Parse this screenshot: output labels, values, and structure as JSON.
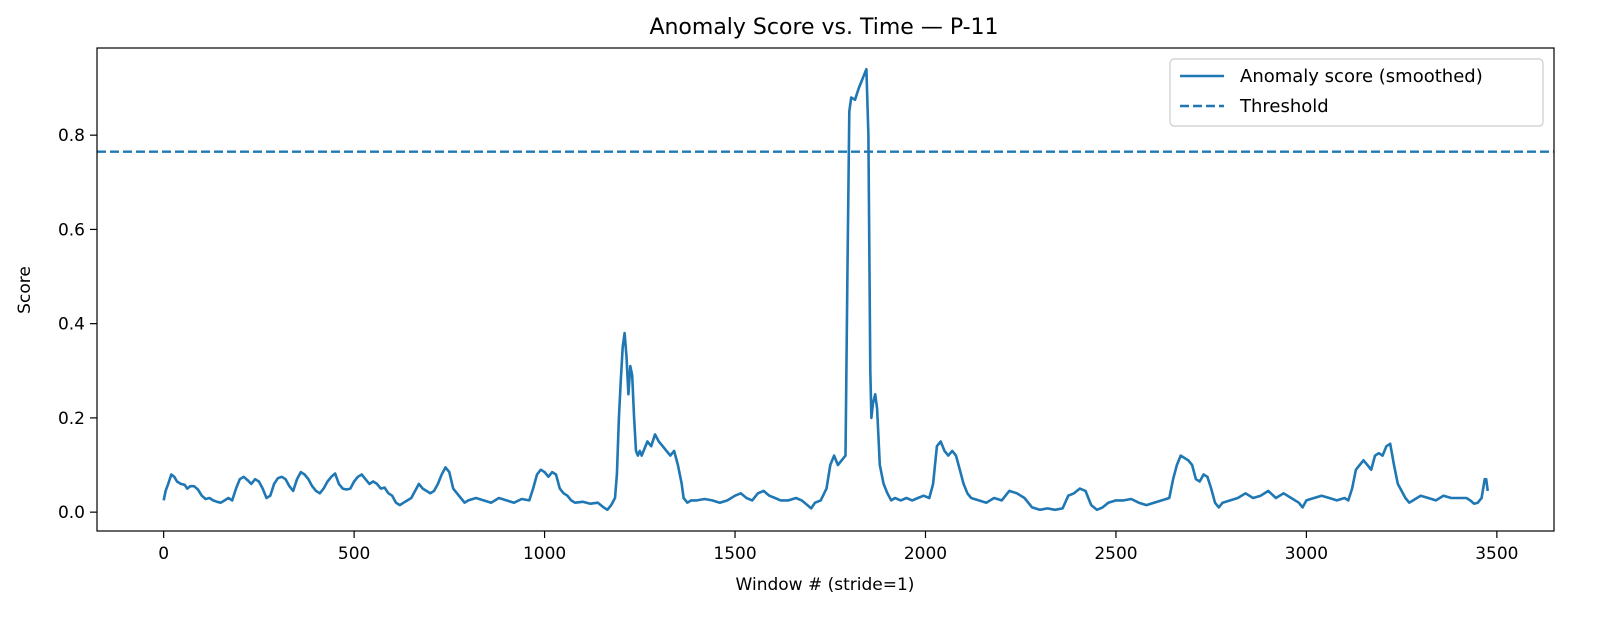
{
  "chart_data": {
    "type": "line",
    "title": "Anomaly Score vs. Time — P-11",
    "xlabel": "Window # (stride=1)",
    "ylabel": "Score",
    "xlim": [
      -175,
      3650
    ],
    "ylim": [
      -0.04,
      0.985
    ],
    "xticks": [
      0,
      500,
      1000,
      1500,
      2000,
      2500,
      3000,
      3500
    ],
    "yticks": [
      0.0,
      0.2,
      0.4,
      0.6,
      0.8
    ],
    "grid": false,
    "legend_position": "top-right",
    "threshold": 0.765,
    "colors": {
      "series": "#1f77b4",
      "threshold": "#1f77b4"
    },
    "series": [
      {
        "name": "Anomaly score (smoothed)",
        "style": "solid",
        "points": [
          [
            0,
            0.025
          ],
          [
            5,
            0.045
          ],
          [
            12,
            0.06
          ],
          [
            20,
            0.08
          ],
          [
            28,
            0.075
          ],
          [
            35,
            0.065
          ],
          [
            45,
            0.06
          ],
          [
            55,
            0.058
          ],
          [
            62,
            0.05
          ],
          [
            70,
            0.055
          ],
          [
            80,
            0.055
          ],
          [
            90,
            0.048
          ],
          [
            100,
            0.035
          ],
          [
            110,
            0.028
          ],
          [
            120,
            0.03
          ],
          [
            130,
            0.025
          ],
          [
            140,
            0.022
          ],
          [
            150,
            0.02
          ],
          [
            160,
            0.025
          ],
          [
            170,
            0.03
          ],
          [
            180,
            0.025
          ],
          [
            190,
            0.05
          ],
          [
            200,
            0.07
          ],
          [
            210,
            0.075
          ],
          [
            220,
            0.068
          ],
          [
            230,
            0.06
          ],
          [
            240,
            0.07
          ],
          [
            250,
            0.065
          ],
          [
            260,
            0.05
          ],
          [
            270,
            0.03
          ],
          [
            280,
            0.035
          ],
          [
            290,
            0.06
          ],
          [
            300,
            0.072
          ],
          [
            310,
            0.075
          ],
          [
            320,
            0.07
          ],
          [
            330,
            0.055
          ],
          [
            340,
            0.045
          ],
          [
            350,
            0.07
          ],
          [
            360,
            0.085
          ],
          [
            370,
            0.08
          ],
          [
            380,
            0.07
          ],
          [
            390,
            0.055
          ],
          [
            400,
            0.045
          ],
          [
            410,
            0.04
          ],
          [
            420,
            0.05
          ],
          [
            430,
            0.065
          ],
          [
            440,
            0.075
          ],
          [
            450,
            0.082
          ],
          [
            460,
            0.06
          ],
          [
            470,
            0.05
          ],
          [
            480,
            0.048
          ],
          [
            490,
            0.05
          ],
          [
            500,
            0.065
          ],
          [
            510,
            0.075
          ],
          [
            520,
            0.08
          ],
          [
            530,
            0.07
          ],
          [
            540,
            0.06
          ],
          [
            550,
            0.065
          ],
          [
            560,
            0.06
          ],
          [
            570,
            0.05
          ],
          [
            580,
            0.052
          ],
          [
            590,
            0.04
          ],
          [
            600,
            0.035
          ],
          [
            610,
            0.02
          ],
          [
            620,
            0.015
          ],
          [
            630,
            0.02
          ],
          [
            640,
            0.025
          ],
          [
            650,
            0.03
          ],
          [
            660,
            0.045
          ],
          [
            670,
            0.06
          ],
          [
            680,
            0.05
          ],
          [
            690,
            0.045
          ],
          [
            700,
            0.04
          ],
          [
            710,
            0.045
          ],
          [
            720,
            0.06
          ],
          [
            730,
            0.08
          ],
          [
            740,
            0.095
          ],
          [
            750,
            0.085
          ],
          [
            760,
            0.05
          ],
          [
            770,
            0.04
          ],
          [
            780,
            0.03
          ],
          [
            790,
            0.02
          ],
          [
            800,
            0.025
          ],
          [
            820,
            0.03
          ],
          [
            840,
            0.025
          ],
          [
            860,
            0.02
          ],
          [
            880,
            0.03
          ],
          [
            900,
            0.025
          ],
          [
            920,
            0.02
          ],
          [
            940,
            0.028
          ],
          [
            960,
            0.025
          ],
          [
            970,
            0.05
          ],
          [
            980,
            0.08
          ],
          [
            990,
            0.09
          ],
          [
            1000,
            0.085
          ],
          [
            1010,
            0.075
          ],
          [
            1020,
            0.085
          ],
          [
            1030,
            0.08
          ],
          [
            1040,
            0.05
          ],
          [
            1050,
            0.04
          ],
          [
            1060,
            0.035
          ],
          [
            1070,
            0.025
          ],
          [
            1080,
            0.02
          ],
          [
            1100,
            0.022
          ],
          [
            1120,
            0.018
          ],
          [
            1140,
            0.02
          ],
          [
            1155,
            0.01
          ],
          [
            1165,
            0.005
          ],
          [
            1175,
            0.015
          ],
          [
            1185,
            0.03
          ],
          [
            1190,
            0.08
          ],
          [
            1195,
            0.2
          ],
          [
            1200,
            0.28
          ],
          [
            1205,
            0.35
          ],
          [
            1210,
            0.38
          ],
          [
            1215,
            0.33
          ],
          [
            1220,
            0.25
          ],
          [
            1225,
            0.31
          ],
          [
            1230,
            0.29
          ],
          [
            1235,
            0.2
          ],
          [
            1240,
            0.13
          ],
          [
            1245,
            0.12
          ],
          [
            1250,
            0.13
          ],
          [
            1255,
            0.12
          ],
          [
            1260,
            0.13
          ],
          [
            1270,
            0.15
          ],
          [
            1280,
            0.14
          ],
          [
            1290,
            0.165
          ],
          [
            1300,
            0.15
          ],
          [
            1310,
            0.14
          ],
          [
            1320,
            0.13
          ],
          [
            1330,
            0.12
          ],
          [
            1340,
            0.13
          ],
          [
            1350,
            0.1
          ],
          [
            1360,
            0.06
          ],
          [
            1365,
            0.03
          ],
          [
            1375,
            0.02
          ],
          [
            1385,
            0.025
          ],
          [
            1400,
            0.025
          ],
          [
            1420,
            0.028
          ],
          [
            1440,
            0.025
          ],
          [
            1460,
            0.02
          ],
          [
            1480,
            0.025
          ],
          [
            1500,
            0.035
          ],
          [
            1515,
            0.04
          ],
          [
            1530,
            0.03
          ],
          [
            1545,
            0.025
          ],
          [
            1560,
            0.04
          ],
          [
            1575,
            0.045
          ],
          [
            1590,
            0.035
          ],
          [
            1605,
            0.03
          ],
          [
            1620,
            0.025
          ],
          [
            1640,
            0.025
          ],
          [
            1660,
            0.03
          ],
          [
            1675,
            0.025
          ],
          [
            1690,
            0.015
          ],
          [
            1700,
            0.008
          ],
          [
            1710,
            0.02
          ],
          [
            1725,
            0.025
          ],
          [
            1740,
            0.05
          ],
          [
            1750,
            0.1
          ],
          [
            1760,
            0.12
          ],
          [
            1770,
            0.1
          ],
          [
            1780,
            0.11
          ],
          [
            1790,
            0.12
          ],
          [
            1795,
            0.5
          ],
          [
            1800,
            0.85
          ],
          [
            1805,
            0.88
          ],
          [
            1815,
            0.875
          ],
          [
            1825,
            0.9
          ],
          [
            1835,
            0.92
          ],
          [
            1845,
            0.94
          ],
          [
            1850,
            0.8
          ],
          [
            1855,
            0.3
          ],
          [
            1858,
            0.2
          ],
          [
            1862,
            0.23
          ],
          [
            1868,
            0.25
          ],
          [
            1873,
            0.22
          ],
          [
            1880,
            0.1
          ],
          [
            1890,
            0.06
          ],
          [
            1900,
            0.04
          ],
          [
            1910,
            0.025
          ],
          [
            1920,
            0.03
          ],
          [
            1935,
            0.025
          ],
          [
            1950,
            0.03
          ],
          [
            1965,
            0.025
          ],
          [
            1980,
            0.03
          ],
          [
            1995,
            0.035
          ],
          [
            2010,
            0.03
          ],
          [
            2020,
            0.06
          ],
          [
            2030,
            0.14
          ],
          [
            2040,
            0.15
          ],
          [
            2050,
            0.13
          ],
          [
            2060,
            0.12
          ],
          [
            2070,
            0.13
          ],
          [
            2080,
            0.12
          ],
          [
            2090,
            0.09
          ],
          [
            2100,
            0.06
          ],
          [
            2110,
            0.04
          ],
          [
            2120,
            0.03
          ],
          [
            2140,
            0.025
          ],
          [
            2160,
            0.02
          ],
          [
            2180,
            0.03
          ],
          [
            2200,
            0.025
          ],
          [
            2220,
            0.045
          ],
          [
            2240,
            0.04
          ],
          [
            2260,
            0.03
          ],
          [
            2280,
            0.01
          ],
          [
            2300,
            0.005
          ],
          [
            2320,
            0.008
          ],
          [
            2340,
            0.005
          ],
          [
            2360,
            0.008
          ],
          [
            2375,
            0.035
          ],
          [
            2390,
            0.04
          ],
          [
            2405,
            0.05
          ],
          [
            2420,
            0.045
          ],
          [
            2435,
            0.015
          ],
          [
            2450,
            0.005
          ],
          [
            2465,
            0.01
          ],
          [
            2480,
            0.02
          ],
          [
            2500,
            0.025
          ],
          [
            2520,
            0.025
          ],
          [
            2540,
            0.028
          ],
          [
            2560,
            0.02
          ],
          [
            2580,
            0.015
          ],
          [
            2600,
            0.02
          ],
          [
            2620,
            0.025
          ],
          [
            2640,
            0.03
          ],
          [
            2650,
            0.07
          ],
          [
            2660,
            0.1
          ],
          [
            2670,
            0.12
          ],
          [
            2680,
            0.115
          ],
          [
            2690,
            0.11
          ],
          [
            2700,
            0.1
          ],
          [
            2710,
            0.07
          ],
          [
            2720,
            0.065
          ],
          [
            2730,
            0.08
          ],
          [
            2740,
            0.075
          ],
          [
            2750,
            0.05
          ],
          [
            2760,
            0.02
          ],
          [
            2770,
            0.01
          ],
          [
            2780,
            0.02
          ],
          [
            2800,
            0.025
          ],
          [
            2820,
            0.03
          ],
          [
            2840,
            0.04
          ],
          [
            2860,
            0.03
          ],
          [
            2880,
            0.035
          ],
          [
            2900,
            0.045
          ],
          [
            2920,
            0.03
          ],
          [
            2940,
            0.04
          ],
          [
            2960,
            0.03
          ],
          [
            2980,
            0.02
          ],
          [
            2990,
            0.01
          ],
          [
            3000,
            0.025
          ],
          [
            3020,
            0.03
          ],
          [
            3040,
            0.035
          ],
          [
            3060,
            0.03
          ],
          [
            3080,
            0.025
          ],
          [
            3100,
            0.03
          ],
          [
            3110,
            0.025
          ],
          [
            3120,
            0.05
          ],
          [
            3130,
            0.09
          ],
          [
            3140,
            0.1
          ],
          [
            3150,
            0.11
          ],
          [
            3160,
            0.1
          ],
          [
            3170,
            0.09
          ],
          [
            3180,
            0.12
          ],
          [
            3190,
            0.125
          ],
          [
            3200,
            0.12
          ],
          [
            3210,
            0.14
          ],
          [
            3220,
            0.145
          ],
          [
            3230,
            0.1
          ],
          [
            3240,
            0.06
          ],
          [
            3250,
            0.045
          ],
          [
            3260,
            0.03
          ],
          [
            3270,
            0.02
          ],
          [
            3280,
            0.025
          ],
          [
            3300,
            0.035
          ],
          [
            3320,
            0.03
          ],
          [
            3340,
            0.025
          ],
          [
            3360,
            0.035
          ],
          [
            3380,
            0.03
          ],
          [
            3400,
            0.03
          ],
          [
            3420,
            0.03
          ],
          [
            3430,
            0.025
          ],
          [
            3440,
            0.018
          ],
          [
            3450,
            0.02
          ],
          [
            3460,
            0.03
          ],
          [
            3468,
            0.07
          ],
          [
            3472,
            0.07
          ],
          [
            3476,
            0.045
          ]
        ]
      },
      {
        "name": "Threshold",
        "style": "dashed",
        "value": 0.765
      }
    ]
  }
}
